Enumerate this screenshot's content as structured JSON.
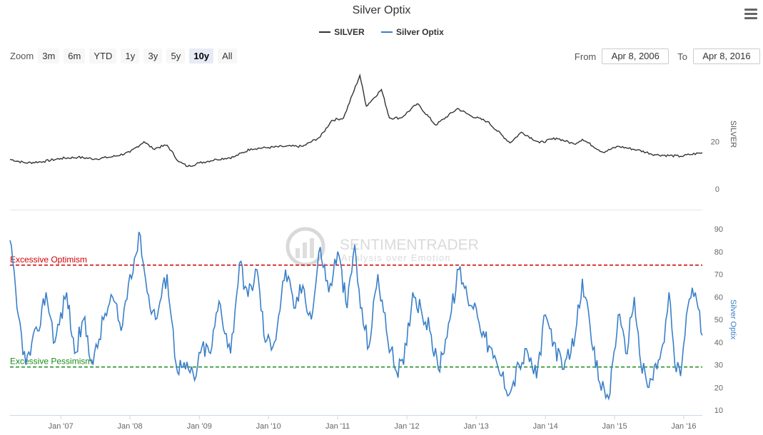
{
  "title": "Silver Optix",
  "menu_icon": "hamburger-menu-icon",
  "legend": [
    {
      "label": "SILVER",
      "color": "#333333"
    },
    {
      "label": "Silver Optix",
      "color": "#3a7fc8"
    }
  ],
  "range_selector": {
    "zoom_label": "Zoom",
    "buttons": [
      "3m",
      "6m",
      "YTD",
      "1y",
      "3y",
      "5y",
      "10y",
      "All"
    ],
    "active": "10y",
    "from_label": "From",
    "from_value": "Apr 8, 2006",
    "to_label": "To",
    "to_value": "Apr 8, 2016"
  },
  "watermark": {
    "name": "SENTIMENTRADER",
    "tagline": "Analysis over Emotion"
  },
  "chart_data": [
    {
      "type": "line",
      "series": [
        {
          "name": "SILVER",
          "color": "#333333"
        }
      ],
      "ylabel": "SILVER",
      "ylim": [
        0,
        50
      ],
      "yticks": [
        {
          "value": 0,
          "label": "0"
        },
        {
          "value": 20,
          "label": "20"
        }
      ],
      "points": [
        [
          "2006-04-08",
          12.5
        ],
        [
          "2006-07-01",
          11.0
        ],
        [
          "2006-10-01",
          11.6
        ],
        [
          "2007-01-01",
          12.9
        ],
        [
          "2007-04-01",
          13.4
        ],
        [
          "2007-07-01",
          12.7
        ],
        [
          "2007-10-01",
          13.6
        ],
        [
          "2008-01-01",
          15.5
        ],
        [
          "2008-03-15",
          20.0
        ],
        [
          "2008-05-01",
          17.0
        ],
        [
          "2008-07-15",
          18.5
        ],
        [
          "2008-09-15",
          11.5
        ],
        [
          "2008-11-01",
          9.5
        ],
        [
          "2009-01-01",
          11.0
        ],
        [
          "2009-04-01",
          12.5
        ],
        [
          "2009-07-01",
          13.5
        ],
        [
          "2009-10-01",
          17.0
        ],
        [
          "2010-01-01",
          17.5
        ],
        [
          "2010-04-01",
          18.0
        ],
        [
          "2010-07-01",
          18.0
        ],
        [
          "2010-10-01",
          22.0
        ],
        [
          "2010-12-01",
          29.0
        ],
        [
          "2011-02-01",
          30.0
        ],
        [
          "2011-04-28",
          48.0
        ],
        [
          "2011-06-01",
          35.0
        ],
        [
          "2011-08-20",
          42.0
        ],
        [
          "2011-10-01",
          30.0
        ],
        [
          "2011-12-01",
          30.0
        ],
        [
          "2012-02-25",
          36.0
        ],
        [
          "2012-06-01",
          27.0
        ],
        [
          "2012-09-25",
          34.0
        ],
        [
          "2012-12-01",
          31.0
        ],
        [
          "2013-03-01",
          28.5
        ],
        [
          "2013-06-28",
          19.5
        ],
        [
          "2013-08-28",
          24.0
        ],
        [
          "2013-12-01",
          19.5
        ],
        [
          "2014-03-01",
          21.5
        ],
        [
          "2014-06-01",
          19.0
        ],
        [
          "2014-07-15",
          21.0
        ],
        [
          "2014-11-01",
          15.5
        ],
        [
          "2015-01-20",
          18.0
        ],
        [
          "2015-05-01",
          16.5
        ],
        [
          "2015-08-01",
          14.5
        ],
        [
          "2015-12-15",
          13.8
        ],
        [
          "2016-02-01",
          14.5
        ],
        [
          "2016-04-08",
          15.3
        ]
      ]
    },
    {
      "type": "line",
      "series": [
        {
          "name": "Silver Optix",
          "color": "#3a7fc8"
        }
      ],
      "ylabel": "Silver Optix",
      "ylim": [
        10,
        90
      ],
      "yticks": [
        {
          "value": 10,
          "label": "10"
        },
        {
          "value": 20,
          "label": "20"
        },
        {
          "value": 30,
          "label": "30"
        },
        {
          "value": 40,
          "label": "40"
        },
        {
          "value": 50,
          "label": "50"
        },
        {
          "value": 60,
          "label": "60"
        },
        {
          "value": 70,
          "label": "70"
        },
        {
          "value": 80,
          "label": "80"
        },
        {
          "value": 90,
          "label": "90"
        }
      ],
      "bands": [
        {
          "label": "Excessive Optimism",
          "value": 74,
          "color": "#cc0000"
        },
        {
          "label": "Excessive Pessimism",
          "value": 29,
          "color": "#1a8a1a"
        }
      ],
      "points": [
        [
          "2006-04-08",
          85
        ],
        [
          "2006-05-15",
          55
        ],
        [
          "2006-07-01",
          30
        ],
        [
          "2006-09-01",
          45
        ],
        [
          "2006-10-15",
          62
        ],
        [
          "2006-12-01",
          40
        ],
        [
          "2007-02-01",
          62
        ],
        [
          "2007-03-15",
          35
        ],
        [
          "2007-05-01",
          50
        ],
        [
          "2007-06-20",
          30
        ],
        [
          "2007-08-15",
          50
        ],
        [
          "2007-10-01",
          60
        ],
        [
          "2007-11-15",
          45
        ],
        [
          "2008-01-01",
          70
        ],
        [
          "2008-02-25",
          87
        ],
        [
          "2008-04-01",
          62
        ],
        [
          "2008-05-15",
          50
        ],
        [
          "2008-07-15",
          70
        ],
        [
          "2008-09-01",
          30
        ],
        [
          "2008-10-20",
          28
        ],
        [
          "2008-12-15",
          25
        ],
        [
          "2009-01-15",
          38
        ],
        [
          "2009-03-01",
          35
        ],
        [
          "2009-04-15",
          58
        ],
        [
          "2009-06-15",
          35
        ],
        [
          "2009-08-01",
          75
        ],
        [
          "2009-09-15",
          60
        ],
        [
          "2009-11-01",
          72
        ],
        [
          "2009-12-15",
          40
        ],
        [
          "2010-02-01",
          40
        ],
        [
          "2010-04-01",
          72
        ],
        [
          "2010-05-15",
          55
        ],
        [
          "2010-07-01",
          65
        ],
        [
          "2010-08-15",
          50
        ],
        [
          "2010-10-01",
          82
        ],
        [
          "2010-11-15",
          62
        ],
        [
          "2011-01-01",
          80
        ],
        [
          "2011-02-20",
          55
        ],
        [
          "2011-04-01",
          83
        ],
        [
          "2011-05-01",
          55
        ],
        [
          "2011-06-15",
          38
        ],
        [
          "2011-08-01",
          70
        ],
        [
          "2011-09-15",
          45
        ],
        [
          "2011-11-01",
          28
        ],
        [
          "2011-12-15",
          30
        ],
        [
          "2012-02-01",
          62
        ],
        [
          "2012-03-15",
          55
        ],
        [
          "2012-05-01",
          45
        ],
        [
          "2012-06-15",
          28
        ],
        [
          "2012-08-15",
          50
        ],
        [
          "2012-10-01",
          72
        ],
        [
          "2012-11-15",
          60
        ],
        [
          "2013-01-01",
          55
        ],
        [
          "2013-02-15",
          42
        ],
        [
          "2013-04-01",
          33
        ],
        [
          "2013-05-15",
          25
        ],
        [
          "2013-07-01",
          18
        ],
        [
          "2013-08-15",
          30
        ],
        [
          "2013-10-01",
          35
        ],
        [
          "2013-11-15",
          24
        ],
        [
          "2014-01-01",
          52
        ],
        [
          "2014-02-15",
          40
        ],
        [
          "2014-04-01",
          28
        ],
        [
          "2014-05-15",
          35
        ],
        [
          "2014-06-15",
          48
        ],
        [
          "2014-07-15",
          68
        ],
        [
          "2014-09-01",
          40
        ],
        [
          "2014-10-15",
          22
        ],
        [
          "2014-12-01",
          15
        ],
        [
          "2015-01-20",
          52
        ],
        [
          "2015-03-01",
          35
        ],
        [
          "2015-04-15",
          60
        ],
        [
          "2015-05-20",
          30
        ],
        [
          "2015-07-01",
          20
        ],
        [
          "2015-08-20",
          32
        ],
        [
          "2015-09-20",
          40
        ],
        [
          "2015-10-15",
          62
        ],
        [
          "2015-11-15",
          30
        ],
        [
          "2015-12-15",
          25
        ],
        [
          "2016-01-15",
          52
        ],
        [
          "2016-02-15",
          64
        ],
        [
          "2016-03-10",
          58
        ],
        [
          "2016-04-08",
          43
        ]
      ]
    }
  ],
  "x_axis": {
    "ticks": [
      {
        "date": "2007-01-01",
        "label": "Jan '07"
      },
      {
        "date": "2008-01-01",
        "label": "Jan '08"
      },
      {
        "date": "2009-01-01",
        "label": "Jan '09"
      },
      {
        "date": "2010-01-01",
        "label": "Jan '10"
      },
      {
        "date": "2011-01-01",
        "label": "Jan '11"
      },
      {
        "date": "2012-01-01",
        "label": "Jan '12"
      },
      {
        "date": "2013-01-01",
        "label": "Jan '13"
      },
      {
        "date": "2014-01-01",
        "label": "Jan '14"
      },
      {
        "date": "2015-01-01",
        "label": "Jan '15"
      },
      {
        "date": "2016-01-01",
        "label": "Jan '16"
      }
    ]
  }
}
